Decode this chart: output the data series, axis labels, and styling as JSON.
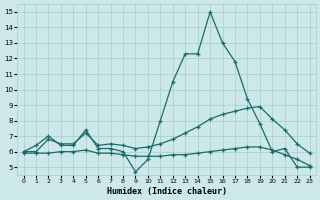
{
  "xlabel": "Humidex (Indice chaleur)",
  "ylabel": "",
  "xlim": [
    -0.5,
    23.5
  ],
  "ylim": [
    4.5,
    15.5
  ],
  "xticks": [
    0,
    1,
    2,
    3,
    4,
    5,
    6,
    7,
    8,
    9,
    10,
    11,
    12,
    13,
    14,
    15,
    16,
    17,
    18,
    19,
    20,
    21,
    22,
    23
  ],
  "yticks": [
    5,
    6,
    7,
    8,
    9,
    10,
    11,
    12,
    13,
    14,
    15
  ],
  "bg_color": "#cce8e8",
  "grid_color": "#aacccc",
  "line_color": "#1a6b6b",
  "line1_x": [
    0,
    1,
    2,
    3,
    4,
    5,
    6,
    7,
    8,
    9,
    10,
    11,
    12,
    13,
    14,
    15,
    16,
    17,
    18,
    19,
    20,
    21,
    22,
    23
  ],
  "line1_y": [
    6.0,
    6.4,
    7.0,
    6.4,
    6.4,
    7.4,
    6.2,
    6.2,
    6.0,
    4.7,
    5.5,
    8.0,
    10.5,
    12.3,
    12.3,
    15.0,
    13.0,
    11.8,
    9.4,
    7.8,
    6.0,
    6.2,
    5.0,
    5.0
  ],
  "line2_x": [
    0,
    1,
    2,
    3,
    4,
    5,
    6,
    7,
    8,
    9,
    10,
    11,
    12,
    13,
    14,
    15,
    16,
    17,
    18,
    19,
    20,
    21,
    22,
    23
  ],
  "line2_y": [
    6.0,
    6.0,
    6.8,
    6.5,
    6.5,
    7.2,
    6.4,
    6.5,
    6.4,
    6.2,
    6.3,
    6.5,
    6.8,
    7.2,
    7.6,
    8.1,
    8.4,
    8.6,
    8.8,
    8.9,
    8.1,
    7.4,
    6.5,
    5.9
  ],
  "line3_x": [
    0,
    1,
    2,
    3,
    4,
    5,
    6,
    7,
    8,
    9,
    10,
    11,
    12,
    13,
    14,
    15,
    16,
    17,
    18,
    19,
    20,
    21,
    22,
    23
  ],
  "line3_y": [
    5.9,
    5.9,
    5.9,
    6.0,
    6.0,
    6.1,
    5.9,
    5.9,
    5.8,
    5.7,
    5.7,
    5.7,
    5.8,
    5.8,
    5.9,
    6.0,
    6.1,
    6.2,
    6.3,
    6.3,
    6.1,
    5.8,
    5.5,
    5.1
  ]
}
